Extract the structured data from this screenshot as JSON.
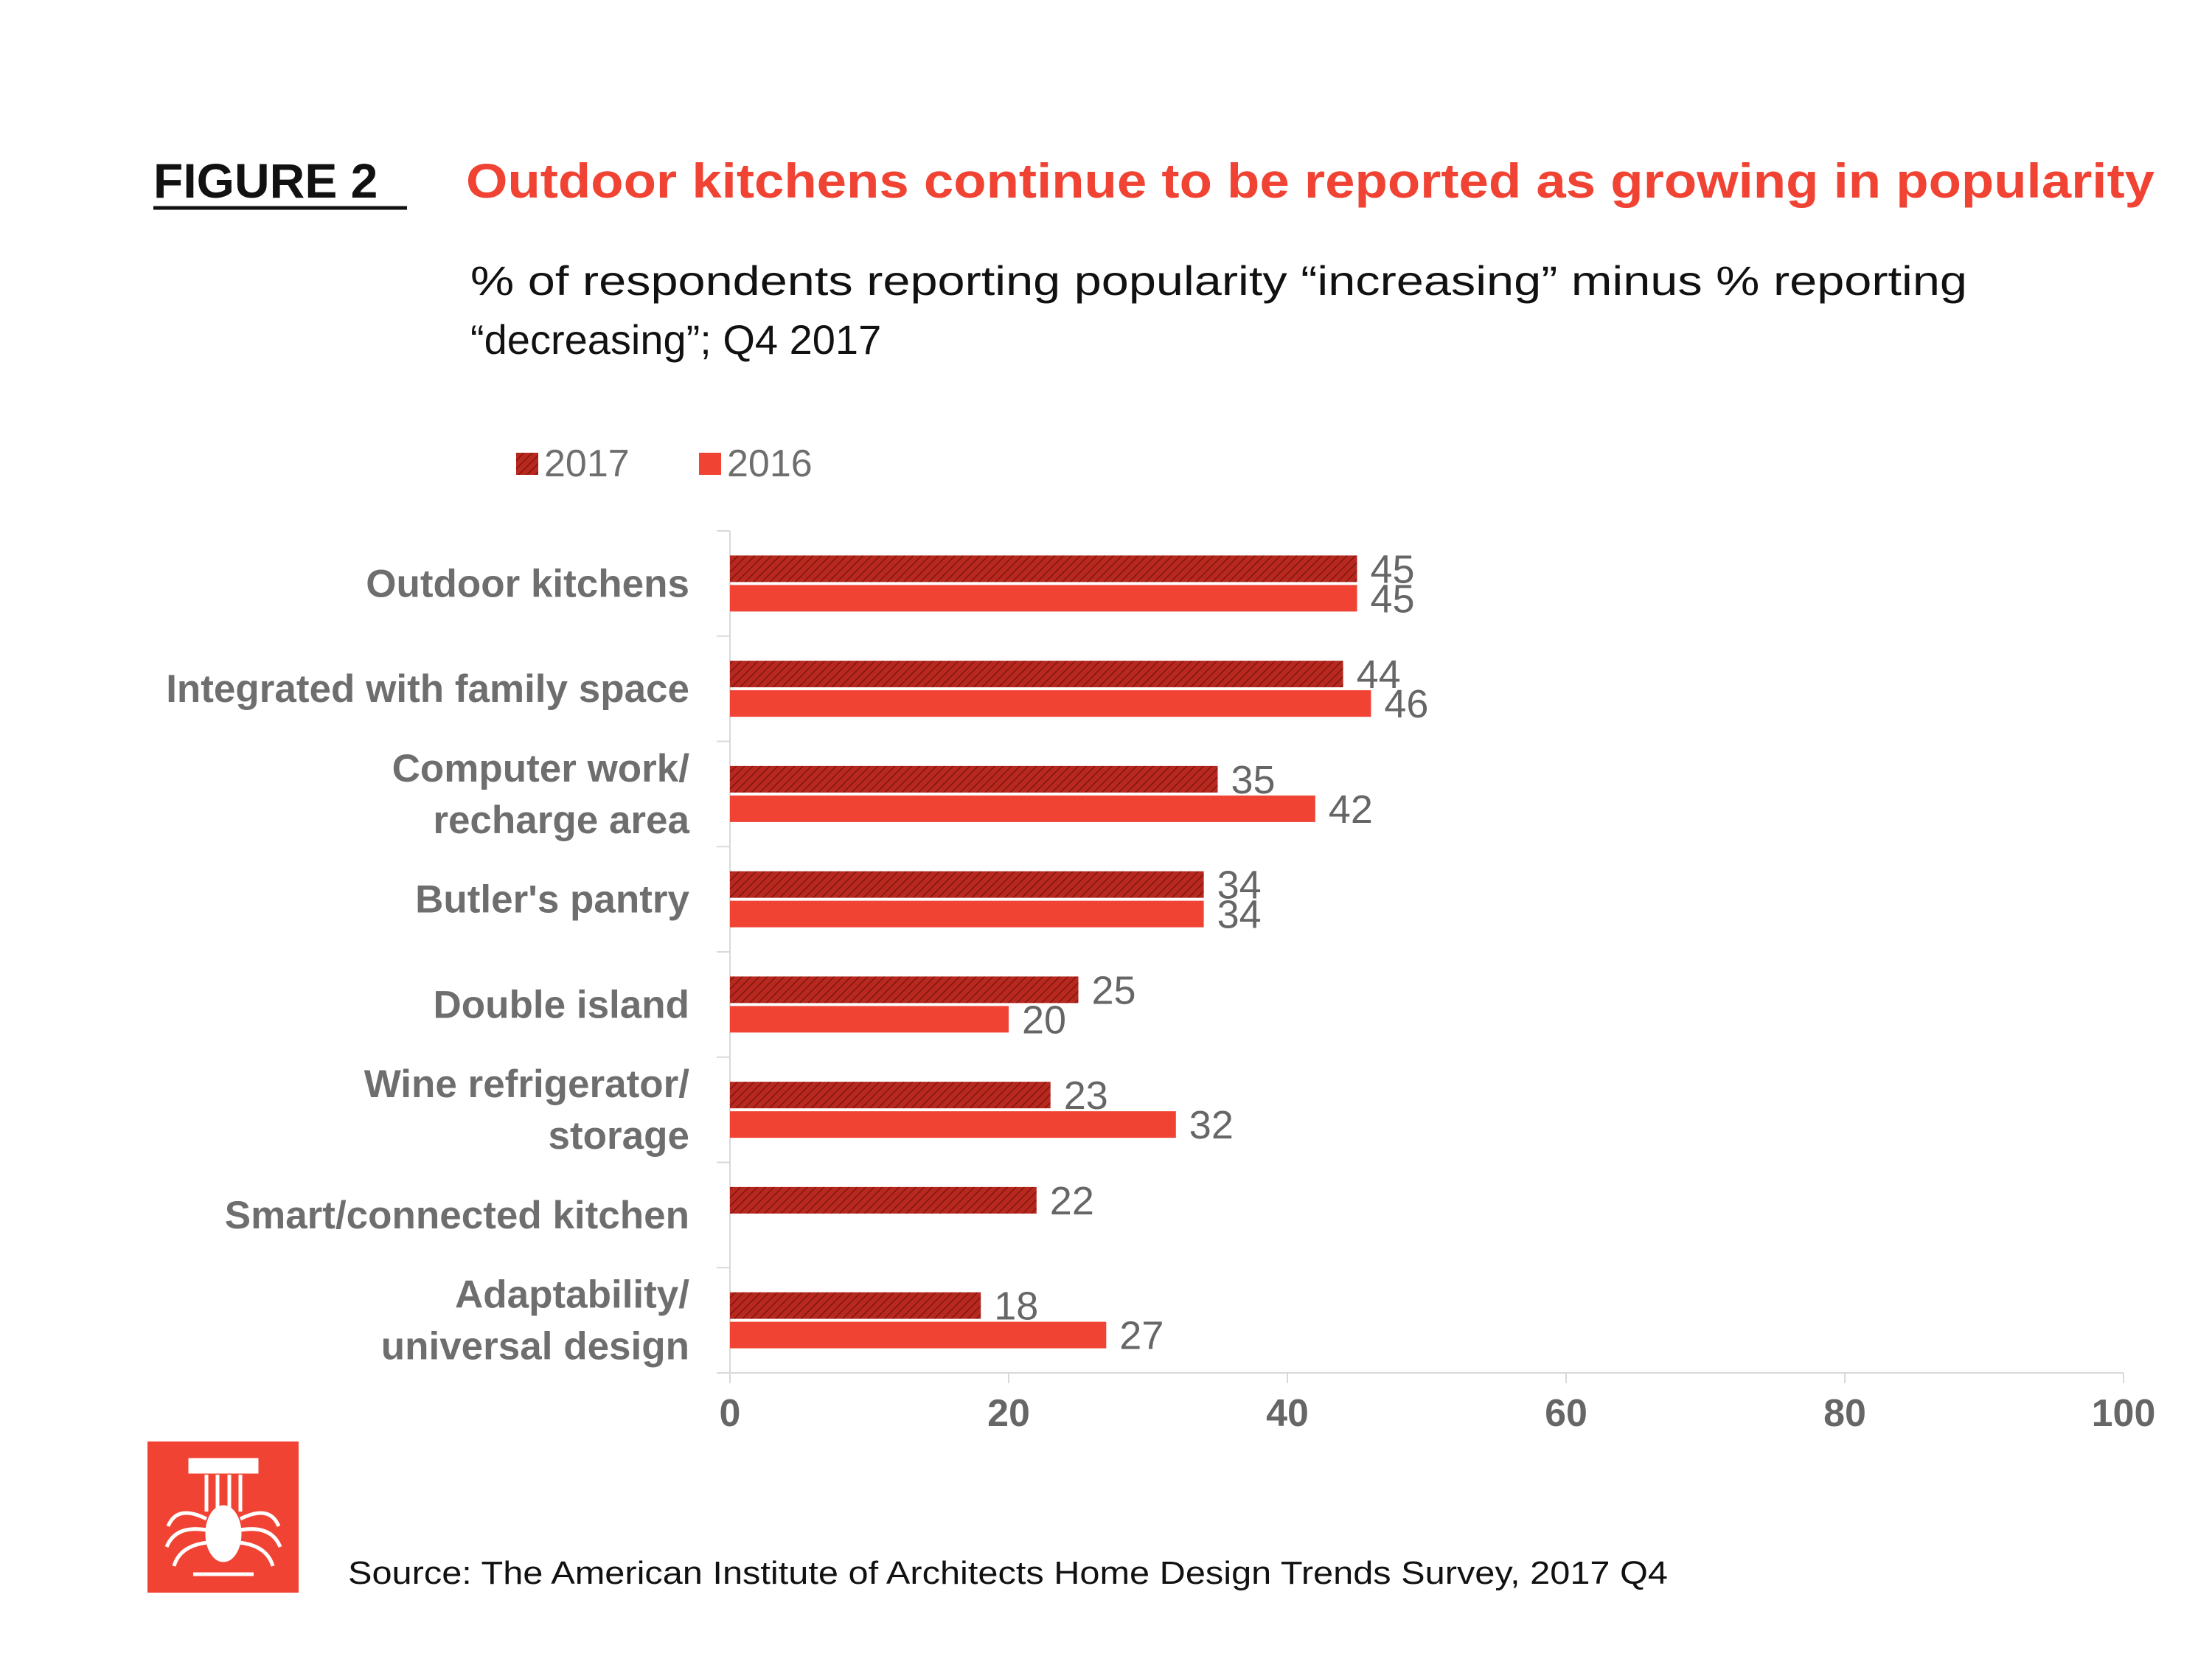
{
  "header": {
    "figure_label": "FIGURE 2",
    "title": "Outdoor kitchens continue to be reported as growing in popularity",
    "subtitle_line1": "% of respondents reporting popularity “increasing” minus % reporting",
    "subtitle_line2": "“decreasing”; Q4 2017"
  },
  "footer": {
    "source": "Source: The American Institute of Architects Home Design Trends Survey, 2017 Q4"
  },
  "colors": {
    "accent": "#f04333",
    "series_2017": "#b8281f",
    "series_2016": "#f04333",
    "text_dark": "#111111",
    "text_gray": "#666666",
    "label_gray": "#6e6e6e"
  },
  "chart_data": {
    "type": "bar",
    "orientation": "horizontal",
    "title": "Outdoor kitchens continue to be reported as growing in popularity",
    "xlabel": "",
    "ylabel": "",
    "xlim": [
      0,
      100
    ],
    "x_ticks": [
      "0",
      "20",
      "40",
      "60",
      "80",
      "100"
    ],
    "legend_position": "top-left",
    "categories": [
      [
        "Outdoor kitchens"
      ],
      [
        "Integrated with family space"
      ],
      [
        "Computer work/",
        "recharge area"
      ],
      [
        "Butler's pantry"
      ],
      [
        "Double island"
      ],
      [
        "Wine refrigerator/",
        "storage"
      ],
      [
        "Smart/connected kitchen"
      ],
      [
        "Adaptability/",
        "universal design"
      ]
    ],
    "series": [
      {
        "name": "2017",
        "values": [
          45,
          44,
          35,
          34,
          25,
          23,
          22,
          18
        ]
      },
      {
        "name": "2016",
        "values": [
          45,
          46,
          42,
          34,
          20,
          32,
          null,
          27
        ]
      }
    ]
  }
}
